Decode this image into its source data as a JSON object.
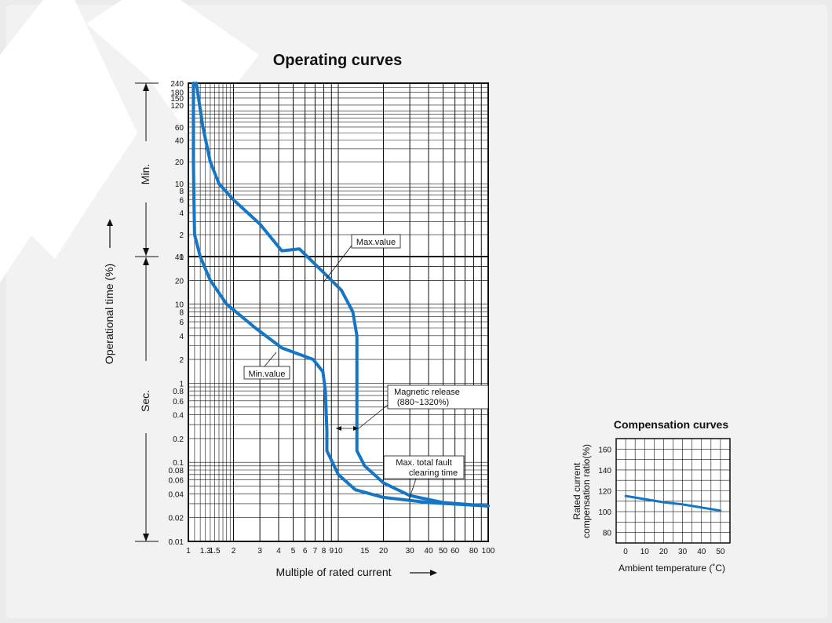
{
  "colors": {
    "curve": "#1476c4",
    "grid": "#111111",
    "background": "#f2f2f2",
    "watermark": "#ffffff"
  },
  "chart_data": [
    {
      "type": "line",
      "title": "Operating curves",
      "xlabel": "Multiple of rated current",
      "ylabel": "Operational time (%)",
      "x_scale": "log",
      "xlim": [
        1,
        100
      ],
      "x_ticks": [
        1,
        1.3,
        1.5,
        2,
        3,
        4,
        5,
        6,
        7,
        8,
        9,
        10,
        15,
        20,
        30,
        40,
        50,
        60,
        80,
        100
      ],
      "x_tick_labels": [
        "1",
        "1.3",
        "1.5",
        "2",
        "3",
        "4",
        "5",
        "6",
        "7",
        "8",
        "9",
        "10",
        "15",
        "20",
        "30",
        "40",
        "50",
        "60",
        "80",
        "100"
      ],
      "y_scale": "log",
      "y_sections": [
        {
          "unit": "Min.",
          "range": [
            1,
            240
          ],
          "ticks": [
            "240",
            "180",
            "150",
            "120",
            "60",
            "40",
            "20",
            "10",
            "8",
            "6",
            "4",
            "2",
            "1"
          ]
        },
        {
          "unit": "Sec.",
          "range": [
            0.01,
            40
          ],
          "ticks": [
            "40",
            "20",
            "10",
            "8",
            "6",
            "4",
            "2",
            "1",
            "0.8",
            "0.6",
            "0.4",
            "0.2",
            "0.1",
            "0.08",
            "0.06",
            "0.04",
            "0.02",
            "0.01"
          ]
        }
      ],
      "series": [
        {
          "points": [
            [
              1.08,
              240
            ],
            [
              1.08,
              60
            ],
            [
              1.08,
              20
            ],
            [
              1.09,
              6
            ],
            [
              1.1,
              2
            ],
            [
              1.2,
              40
            ],
            [
              1.4,
              20
            ],
            [
              1.8,
              10
            ],
            [
              2.8,
              5
            ],
            [
              4.2,
              2.8
            ],
            [
              6.8,
              2
            ],
            [
              7.9,
              1.4
            ],
            [
              8.2,
              0.8
            ],
            [
              8.4,
              0.25
            ],
            [
              8.4,
              0.14
            ],
            [
              10,
              0.07
            ],
            [
              13,
              0.045
            ],
            [
              20,
              0.036
            ],
            [
              40,
              0.031
            ],
            [
              100,
              0.028
            ]
          ]
        },
        {
          "points": [
            [
              1.13,
              240
            ],
            [
              1.25,
              60
            ],
            [
              1.4,
              20
            ],
            [
              1.6,
              10
            ],
            [
              2,
              6
            ],
            [
              3,
              2.8
            ],
            [
              4.2,
              1.2
            ],
            [
              5.5,
              50
            ],
            [
              8,
              25
            ],
            [
              10.5,
              15
            ],
            [
              12.5,
              8
            ],
            [
              13.3,
              4
            ],
            [
              13.3,
              0.5
            ],
            [
              13.3,
              0.14
            ],
            [
              15,
              0.09
            ],
            [
              20,
              0.055
            ],
            [
              30,
              0.038
            ],
            [
              50,
              0.031
            ],
            [
              100,
              0.028
            ]
          ]
        }
      ],
      "annotations": {
        "max_value": "Max.value",
        "min_value": "Min.value",
        "magnetic_release": [
          "Magnetic release",
          "(880~1320%)"
        ],
        "max_total_fault": [
          "Max. total fault",
          "clearing time"
        ]
      }
    },
    {
      "type": "line",
      "title": "Compensation curves",
      "xlabel": "Ambient temperature (˚C)",
      "ylabel_lines": [
        "Rated current",
        "compensation ratio(%)"
      ],
      "xlim": [
        -5,
        55
      ],
      "ylim": [
        70,
        170
      ],
      "x_ticks": [
        0,
        10,
        20,
        30,
        40,
        50
      ],
      "y_ticks": [
        80,
        100,
        120,
        140,
        160
      ],
      "series": [
        {
          "x": [
            0,
            10,
            20,
            30,
            40,
            50
          ],
          "values": [
            115,
            112,
            109,
            107,
            104,
            101
          ]
        }
      ]
    }
  ]
}
